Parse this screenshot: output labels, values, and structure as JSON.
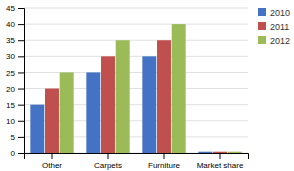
{
  "chart_data": {
    "type": "bar",
    "categories": [
      "Other",
      "Carpets",
      "Furniture",
      "Market share"
    ],
    "series": [
      {
        "name": "2010",
        "color": "#4472C4",
        "values": [
          15,
          25,
          30,
          0.4
        ]
      },
      {
        "name": "2011",
        "color": "#C0504D",
        "values": [
          20,
          30,
          35,
          0.4
        ]
      },
      {
        "name": "2012",
        "color": "#9BBB59",
        "values": [
          25,
          35,
          40,
          0.4
        ]
      }
    ],
    "ylim": [
      0,
      45
    ],
    "yticks": [
      0,
      5,
      10,
      15,
      20,
      25,
      30,
      35,
      40,
      45
    ],
    "grid": true,
    "legend": "right"
  }
}
